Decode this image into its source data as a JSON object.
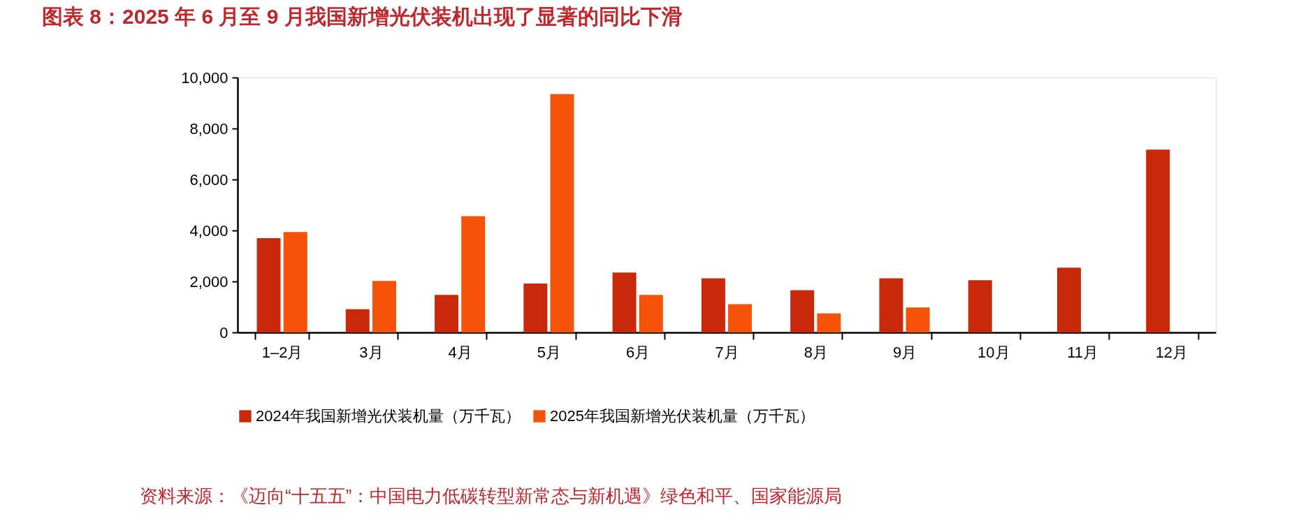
{
  "chart_data": {
    "type": "bar",
    "title": "图表 8：2025 年 6 月至 9 月我国新增光伏装机出现了显著的同比下滑",
    "categories": [
      "1–2月",
      "3月",
      "4月",
      "5月",
      "6月",
      "7月",
      "8月",
      "9月",
      "10月",
      "11月",
      "12月"
    ],
    "series": [
      {
        "name": "2024年我国新增光伏装机量（万千瓦）",
        "color": "#c8290a",
        "values": [
          3700,
          910,
          1470,
          1920,
          2350,
          2120,
          1660,
          2120,
          2050,
          2540,
          7170
        ]
      },
      {
        "name": "2025年我国新增光伏装机量（万千瓦）",
        "color": "#f5520a",
        "values": [
          3940,
          2020,
          4560,
          9350,
          1470,
          1110,
          750,
          980,
          null,
          null,
          null
        ]
      }
    ],
    "ylim": [
      0,
      10000
    ],
    "yticks": [
      0,
      {
        "value": 2000,
        "label": "2,000"
      },
      {
        "value": 4000,
        "label": "4,000"
      },
      {
        "value": 6000,
        "label": "6,000"
      },
      {
        "value": 8000,
        "label": "8,000"
      },
      {
        "value": 10000,
        "label": "10,000"
      }
    ],
    "grid": false,
    "legend": "bottom",
    "annotations": [
      "资料来源：《迈向“十五五”：中国电力低碳转型新常态与新机遇》绿色和平、国家能源局"
    ]
  }
}
